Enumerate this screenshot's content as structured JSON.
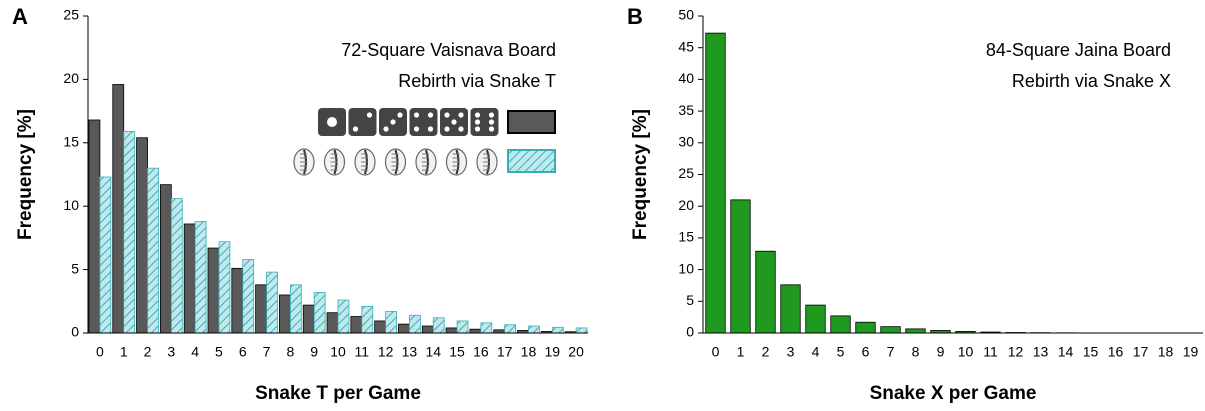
{
  "chart_data": [
    {
      "type": "bar",
      "panel_label": "A",
      "annotations": [
        "72-Square Vaisnava Board",
        "Rebirth via Snake T"
      ],
      "x_label": "Snake T per Game",
      "y_label": "Frequency [%]",
      "categories": [
        "0",
        "1",
        "2",
        "3",
        "4",
        "5",
        "6",
        "7",
        "8",
        "9",
        "10",
        "11",
        "12",
        "13",
        "14",
        "15",
        "16",
        "17",
        "18",
        "19",
        "20"
      ],
      "series": [
        {
          "color": "#595959",
          "values": [
            16.8,
            19.6,
            15.4,
            11.7,
            8.6,
            6.7,
            5.1,
            3.8,
            3.0,
            2.2,
            1.6,
            1.3,
            0.95,
            0.7,
            0.55,
            0.4,
            0.3,
            0.25,
            0.2,
            0.12,
            0.1
          ]
        },
        {
          "color": "#bfe9ec",
          "hatch": "#3aaeb6",
          "values": [
            12.3,
            15.9,
            13.0,
            10.6,
            8.8,
            7.2,
            5.8,
            4.8,
            3.8,
            3.2,
            2.6,
            2.1,
            1.7,
            1.4,
            1.2,
            0.95,
            0.8,
            0.65,
            0.55,
            0.45,
            0.4
          ]
        }
      ],
      "ylim": [
        0,
        25
      ],
      "yticks": [
        0,
        5,
        10,
        15,
        20,
        25
      ]
    },
    {
      "type": "bar",
      "panel_label": "B",
      "annotations": [
        "84-Square Jaina Board",
        "Rebirth via Snake X"
      ],
      "x_label": "Snake X per Game",
      "y_label": "Frequency [%]",
      "categories": [
        "0",
        "1",
        "2",
        "3",
        "4",
        "5",
        "6",
        "7",
        "8",
        "9",
        "10",
        "11",
        "12",
        "13",
        "14",
        "15",
        "16",
        "17",
        "18",
        "19"
      ],
      "series": [
        {
          "color": "#1f9a1f",
          "values": [
            47.3,
            21.0,
            12.9,
            7.6,
            4.4,
            2.7,
            1.7,
            1.0,
            0.65,
            0.4,
            0.25,
            0.15,
            0.08,
            0.05,
            0.03,
            0.02,
            0.01,
            0.01,
            0,
            0
          ]
        }
      ],
      "ylim": [
        0,
        50
      ],
      "yticks": [
        0,
        5,
        10,
        15,
        20,
        25,
        30,
        35,
        40,
        45,
        50
      ]
    }
  ]
}
